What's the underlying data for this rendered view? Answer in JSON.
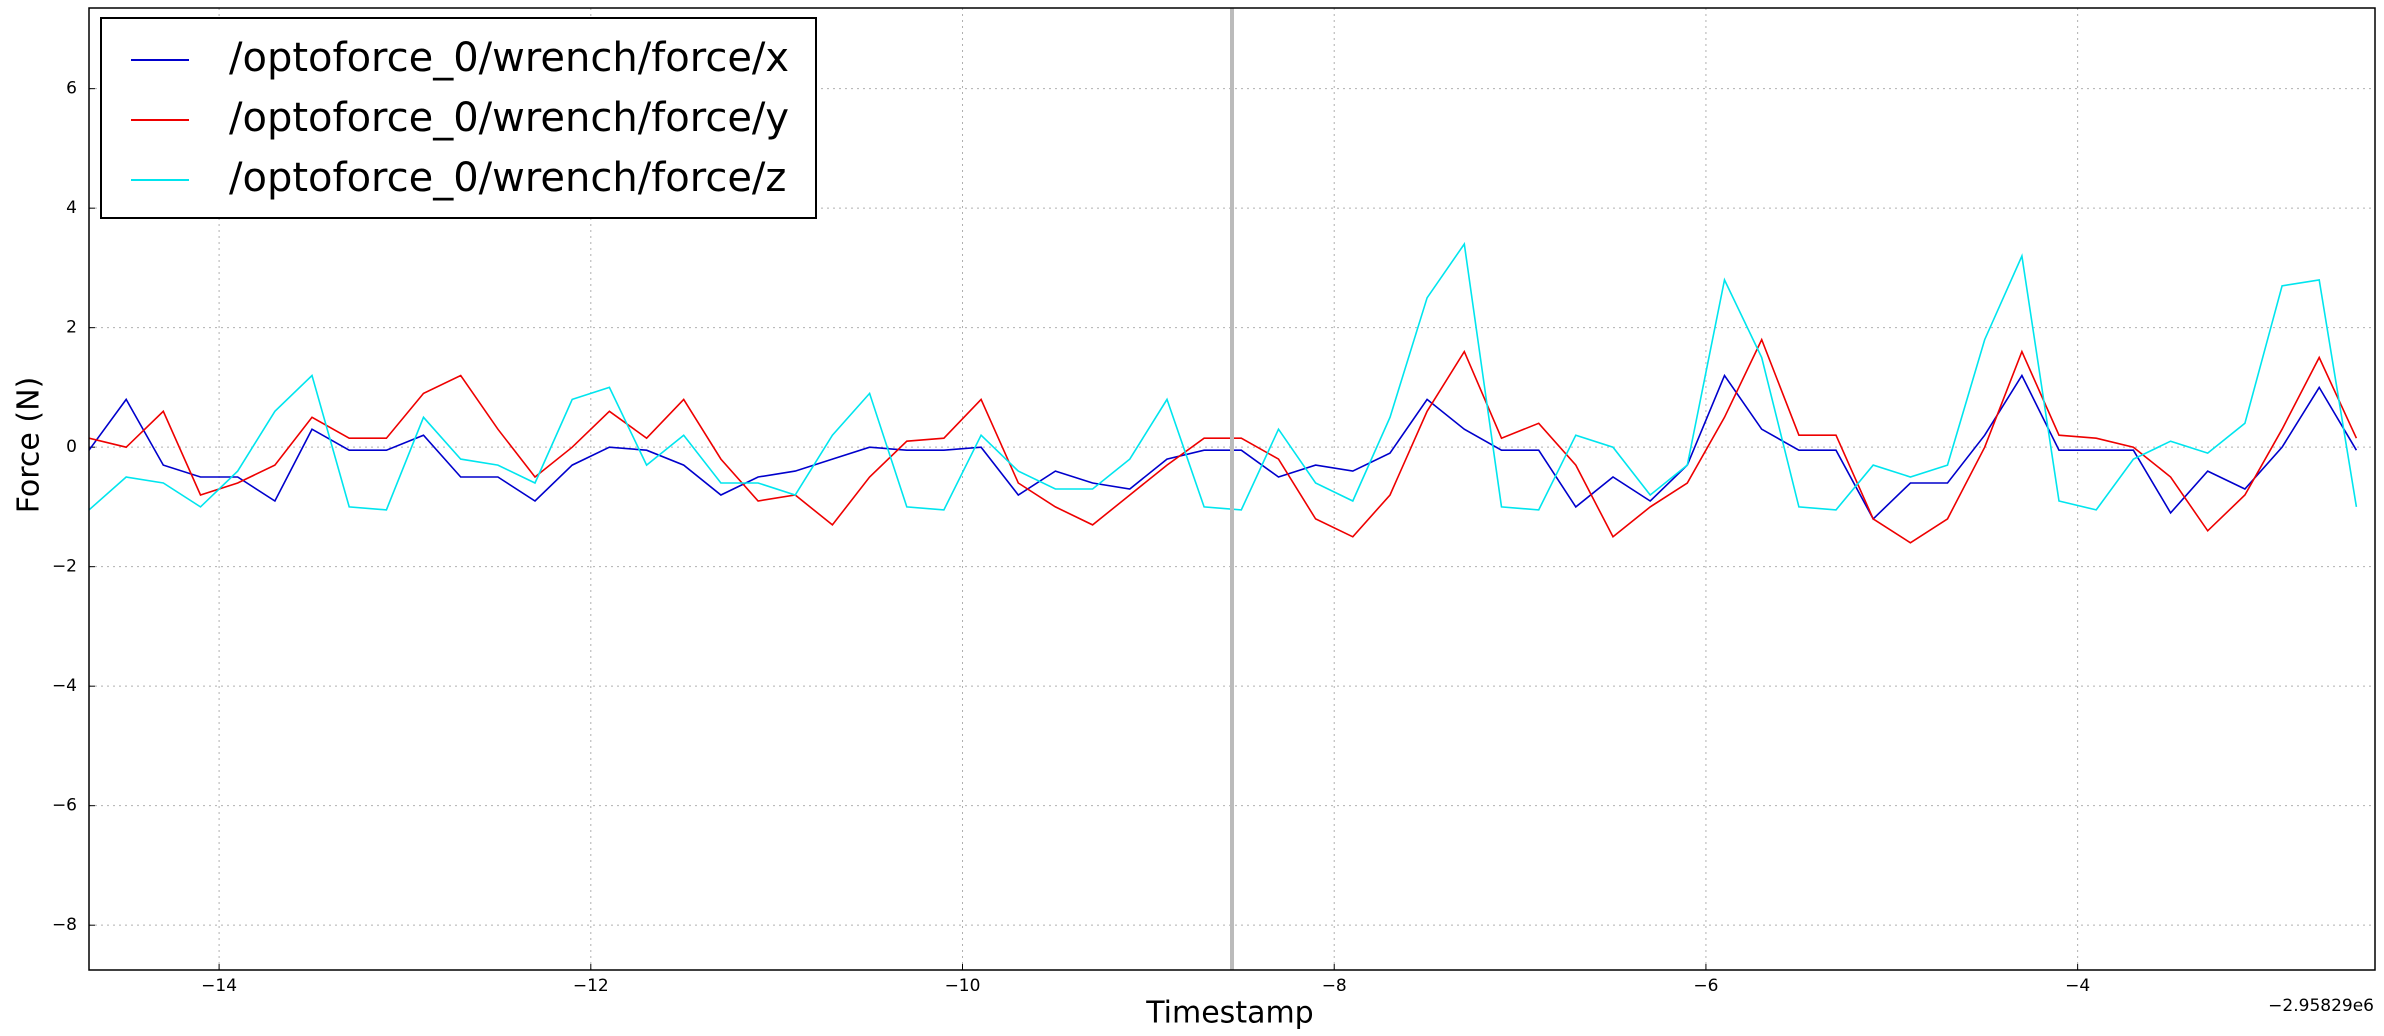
{
  "chart_data": {
    "type": "line",
    "xlabel": "Timestamp",
    "ylabel": "Force (N)",
    "x_offset_label": "−2.95829e6",
    "x": [
      -14.7,
      -14.5,
      -14.3,
      -14.1,
      -13.9,
      -13.7,
      -13.5,
      -13.3,
      -13.1,
      -12.9,
      -12.7,
      -12.5,
      -12.3,
      -12.1,
      -11.9,
      -11.7,
      -11.5,
      -11.3,
      -11.1,
      -10.9,
      -10.7,
      -10.5,
      -10.3,
      -10.1,
      -9.9,
      -9.7,
      -9.5,
      -9.3,
      -9.1,
      -8.9,
      -8.7,
      -8.5,
      -8.3,
      -8.1,
      -7.9,
      -7.7,
      -7.5,
      -7.3,
      -7.1,
      -6.9,
      -6.7,
      -6.5,
      -6.3,
      -6.1,
      -5.9,
      -5.7,
      -5.5,
      -5.3,
      -5.1,
      -4.9,
      -4.7,
      -4.5,
      -4.3,
      -4.1,
      -3.9,
      -3.7,
      -3.5,
      -3.3,
      -3.1,
      -2.9,
      -2.7,
      -2.5
    ],
    "series": [
      {
        "name": "/optoforce_0/wrench/force/x",
        "color": "#0000cc",
        "values": [
          -0.05,
          0.8,
          -0.3,
          -0.5,
          -0.5,
          -0.9,
          0.3,
          -0.05,
          -0.05,
          0.2,
          -0.5,
          -0.5,
          -0.9,
          -0.3,
          0.0,
          -0.05,
          -0.3,
          -0.8,
          -0.5,
          -0.4,
          -0.2,
          0.0,
          -0.05,
          -0.05,
          0.0,
          -0.8,
          -0.4,
          -0.6,
          -0.7,
          -0.2,
          -0.05,
          -0.05,
          -0.5,
          -0.3,
          -0.4,
          -0.1,
          0.8,
          0.3,
          -0.05,
          -0.05,
          -1.0,
          -0.5,
          -0.9,
          -0.3,
          1.2,
          0.3,
          -0.05,
          -0.05,
          -1.2,
          -0.6,
          -0.6,
          0.2,
          1.2,
          -0.05,
          -0.05,
          -0.05,
          -1.1,
          -0.4,
          -0.7,
          0.0,
          1.0,
          -0.05
        ]
      },
      {
        "name": "/optoforce_0/wrench/force/y",
        "color": "#ee0000",
        "values": [
          0.15,
          0.0,
          0.6,
          -0.8,
          -0.6,
          -0.3,
          0.5,
          0.15,
          0.15,
          0.9,
          1.2,
          0.3,
          -0.5,
          0.0,
          0.6,
          0.15,
          0.8,
          -0.2,
          -0.9,
          -0.8,
          -1.3,
          -0.5,
          0.1,
          0.15,
          0.8,
          -0.6,
          -1.0,
          -1.3,
          -0.8,
          -0.3,
          0.15,
          0.15,
          -0.2,
          -1.2,
          -1.5,
          -0.8,
          0.6,
          1.6,
          0.15,
          0.4,
          -0.3,
          -1.5,
          -1.0,
          -0.6,
          0.5,
          1.8,
          0.2,
          0.2,
          -1.2,
          -1.6,
          -1.2,
          0.0,
          1.6,
          0.2,
          0.15,
          0.0,
          -0.5,
          -1.4,
          -0.8,
          0.3,
          1.5,
          0.15
        ]
      },
      {
        "name": "/optoforce_0/wrench/force/z",
        "color": "#00e5ee",
        "values": [
          -1.05,
          -0.5,
          -0.6,
          -1.0,
          -0.4,
          0.6,
          1.2,
          -1.0,
          -1.05,
          0.5,
          -0.2,
          -0.3,
          -0.6,
          0.8,
          1.0,
          -0.3,
          0.2,
          -0.6,
          -0.6,
          -0.8,
          0.2,
          0.9,
          -1.0,
          -1.05,
          0.2,
          -0.4,
          -0.7,
          -0.7,
          -0.2,
          0.8,
          -1.0,
          -1.05,
          0.3,
          -0.6,
          -0.9,
          0.5,
          2.5,
          3.4,
          -1.0,
          -1.05,
          0.2,
          0.0,
          -0.8,
          -0.3,
          2.8,
          1.5,
          -1.0,
          -1.05,
          -0.3,
          -0.5,
          -0.3,
          1.8,
          3.2,
          -0.9,
          -1.05,
          -0.2,
          0.1,
          -0.1,
          0.4,
          2.7,
          2.8,
          -1.0
        ]
      }
    ],
    "cursor_x": -8.55,
    "xlim": [
      -14.7,
      -2.4
    ],
    "ylim": [
      -8.75,
      7.35
    ],
    "xticks": [
      {
        "value": -14,
        "label": "−14"
      },
      {
        "value": -12,
        "label": "−12"
      },
      {
        "value": -10,
        "label": "−10"
      },
      {
        "value": -8,
        "label": "−8"
      },
      {
        "value": -6,
        "label": "−6"
      },
      {
        "value": -4,
        "label": "−4"
      }
    ],
    "yticks": [
      {
        "value": -8,
        "label": "−8"
      },
      {
        "value": -6,
        "label": "−6"
      },
      {
        "value": -4,
        "label": "−4"
      },
      {
        "value": -2,
        "label": "−2"
      },
      0,
      2,
      4,
      6
    ],
    "grid": true,
    "legend": "upper left"
  }
}
